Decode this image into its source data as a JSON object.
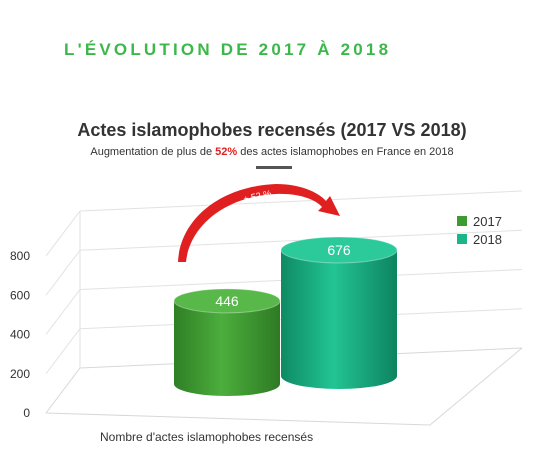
{
  "heading": "L'ÉVOLUTION DE 2017 À 2018",
  "chart_data": {
    "type": "bar",
    "title": "Actes islamophobes recensés (2017 VS 2018)",
    "subtitle_before": "Augmentation de plus de ",
    "subtitle_highlight": "52%",
    "subtitle_after": " des actes islamophobes en France en 2018",
    "categories": [
      "Nombre d'actes islamophobes recensés"
    ],
    "series": [
      {
        "name": "2017",
        "values": [
          446
        ],
        "color": "#3d9b32"
      },
      {
        "name": "2018",
        "values": [
          676
        ],
        "color": "#1ab589"
      }
    ],
    "ylim": [
      0,
      800
    ],
    "yticks": [
      "0",
      "200",
      "400",
      "600",
      "800"
    ],
    "xlabel": "Nombre d'actes islamophobes recensés",
    "annotation": "+ 52 %",
    "annotation_color": "#e02020",
    "legend_position": "top-right",
    "grid": true
  }
}
